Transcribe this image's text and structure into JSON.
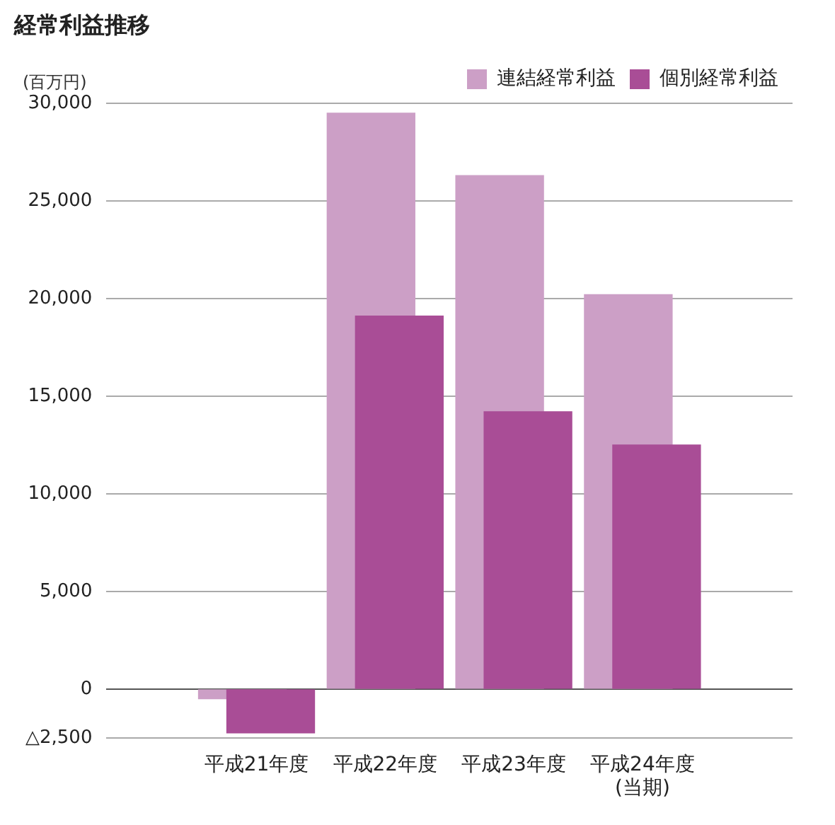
{
  "chart_data": {
    "type": "bar",
    "title": "経常利益推移",
    "ylabel": "(百万円)",
    "categories": [
      "平成21年度",
      "平成22年度",
      "平成23年度",
      "平成24年度\n(当期)"
    ],
    "series": [
      {
        "name": "連結経常利益",
        "color": "#cc9fc6",
        "values": [
          -500,
          29500,
          26300,
          20200
        ]
      },
      {
        "name": "個別経常利益",
        "color": "#a94d96",
        "values": [
          -2250,
          19100,
          14200,
          12500
        ]
      }
    ],
    "ylim": [
      -2500,
      30000
    ],
    "yticks": [
      {
        "value": -2500,
        "label": "△2,500"
      },
      0,
      {
        "value": 5000,
        "label": "5,000"
      },
      {
        "value": 10000,
        "label": "10,000"
      },
      {
        "value": 15000,
        "label": "15,000"
      },
      {
        "value": 20000,
        "label": "20,000"
      },
      {
        "value": 25000,
        "label": "25,000"
      },
      {
        "value": 30000,
        "label": "30,000"
      }
    ],
    "grid": "y",
    "legend": "top right"
  }
}
